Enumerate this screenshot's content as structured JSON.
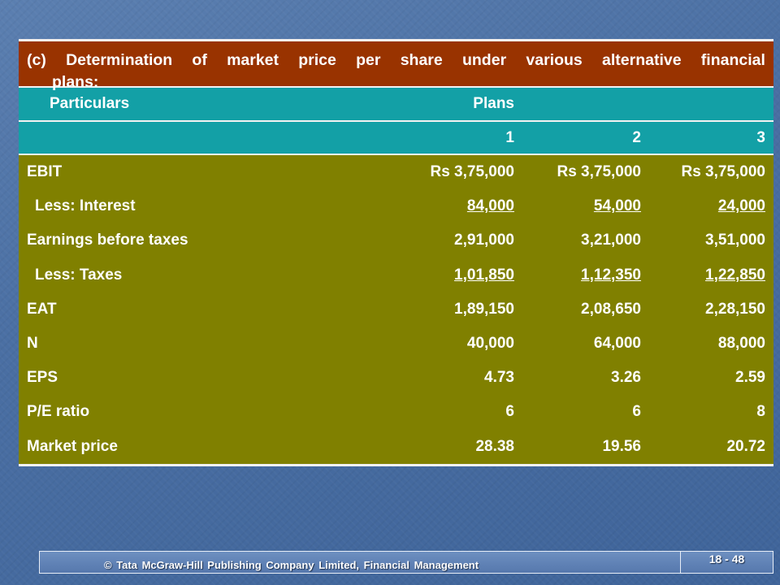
{
  "heading": {
    "line1_words": [
      "(c)",
      "Determination",
      "of",
      "market",
      "price",
      "per",
      "share",
      "under",
      "various",
      "alternative",
      "financial"
    ],
    "line2": "plans:"
  },
  "header_row": {
    "particulars": "Particulars",
    "plans": "Plans"
  },
  "plan_numbers": [
    "1",
    "2",
    "3"
  ],
  "rows": [
    {
      "label": "EBIT",
      "values": [
        "Rs 3,75,000",
        "Rs 3,75,000",
        "Rs 3,75,000"
      ],
      "underline": false
    },
    {
      "label": "Less: Interest",
      "values": [
        "84,000",
        "54,000",
        "24,000"
      ],
      "underline": true
    },
    {
      "label": "Earnings before taxes",
      "values": [
        "2,91,000",
        "3,21,000",
        "3,51,000"
      ],
      "underline": false
    },
    {
      "label": "Less: Taxes",
      "values": [
        "1,01,850",
        "1,12,350",
        "1,22,850"
      ],
      "underline": true
    },
    {
      "label": "EAT",
      "values": [
        "1,89,150",
        "2,08,650",
        "2,28,150"
      ],
      "underline": false
    },
    {
      "label": "N",
      "values": [
        "40,000",
        "64,000",
        "88,000"
      ],
      "underline": false
    },
    {
      "label": "EPS",
      "values": [
        "4.73",
        "3.26",
        "2.59"
      ],
      "underline": false
    },
    {
      "label": "P/E ratio",
      "values": [
        "6",
        "6",
        "8"
      ],
      "underline": false
    },
    {
      "label": "Market price",
      "values": [
        "28.38",
        "19.56",
        "20.72"
      ],
      "underline": false
    }
  ],
  "footer": {
    "copyright": "© Tata McGraw-Hill Publishing Company Limited, Financial Management",
    "slide_number": "18 - 48"
  },
  "colors": {
    "heading_bg": "#993300",
    "teal": "#13a0a6",
    "olive": "#808000",
    "background": "#4a6fa3"
  }
}
